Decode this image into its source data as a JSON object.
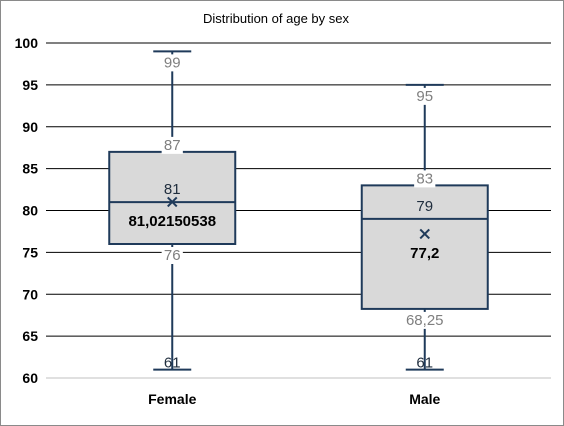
{
  "chart_data": {
    "type": "box",
    "title": "Distribution of age by sex",
    "xlabel": "",
    "ylabel": "",
    "ylim": [
      60,
      100
    ],
    "yticks": [
      "60",
      "65",
      "70",
      "75",
      "80",
      "85",
      "90",
      "95",
      "100"
    ],
    "grid": true,
    "categories": [
      "Female",
      "Male"
    ],
    "boxes": [
      {
        "category": "Female",
        "min": 61,
        "q1": 76,
        "median": 81,
        "q3": 87,
        "max": 99,
        "mean": 81.02150538,
        "labels": {
          "min": "61",
          "q1": "76",
          "median": "81",
          "q3": "87",
          "max": "99",
          "mean": "81,02150538"
        }
      },
      {
        "category": "Male",
        "min": 61,
        "q1": 68.25,
        "median": 79,
        "q3": 83,
        "max": 95,
        "mean": 77.2,
        "labels": {
          "min": "61",
          "q1": "68,25",
          "median": "79",
          "q3": "83",
          "max": "95",
          "mean": "77,2"
        }
      }
    ],
    "colors": {
      "box_fill": "#d9d9d9",
      "box_stroke": "#1f3a5a",
      "grid": "#000000"
    }
  }
}
